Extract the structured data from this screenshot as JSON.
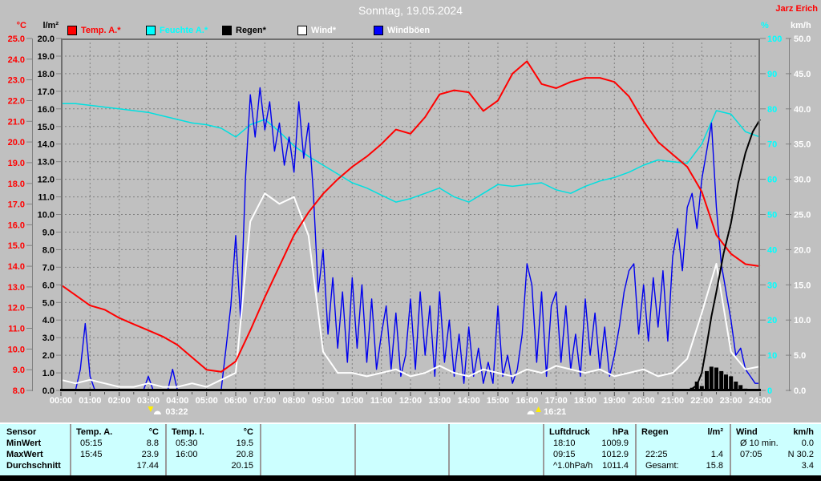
{
  "window": {
    "title": "Sonntag, 19.05.2024",
    "watermark": "Jarz Erich"
  },
  "units": {
    "temp": "°C",
    "rain": "l/m²",
    "humidity": "%",
    "wind": "km/h"
  },
  "legend": {
    "items": [
      {
        "label": "Temp. A.*",
        "swatch_color": "#ff0000",
        "text_color": "#ff0000"
      },
      {
        "label": "Feuchte A.*",
        "swatch_color": "#00ffff",
        "text_color": "#00ffff"
      },
      {
        "label": "Regen*",
        "swatch_color": "#000000",
        "text_color": "#000000"
      },
      {
        "label": "Wind*",
        "swatch_color": "#ffffff",
        "text_color": "#ffffff"
      },
      {
        "label": "Windböen",
        "swatch_color": "#0000ff",
        "text_color": "#ffffff"
      }
    ]
  },
  "chart_data": {
    "type": "line",
    "title": "Sonntag, 19.05.2024",
    "grid": true,
    "x_axis": {
      "unit": "hours",
      "min": 0,
      "max": 24,
      "tick_labels": [
        "00:00",
        "01:00",
        "02:00",
        "03:00",
        "04:00",
        "05:00",
        "06:00",
        "07:00",
        "08:00",
        "09:00",
        "10:00",
        "11:00",
        "12:00",
        "13:00",
        "14:00",
        "15:00",
        "16:00",
        "17:00",
        "18:00",
        "19:00",
        "20:00",
        "21:00",
        "22:00",
        "23:00",
        "24:00"
      ]
    },
    "y_axes": {
      "temp": {
        "unit": "°C",
        "color": "#ff0000",
        "min": 8,
        "max": 25,
        "tick_labels": [
          "25.0",
          "24.0",
          "23.0",
          "22.0",
          "21.0",
          "20.0",
          "19.0",
          "18.0",
          "17.0",
          "16.0",
          "15.0",
          "14.0",
          "13.0",
          "12.0",
          "11.0",
          "10.0",
          "9.0",
          "8.0"
        ]
      },
      "rain": {
        "unit": "l/m²",
        "color": "#000000",
        "min": 0,
        "max": 20,
        "tick_labels": [
          "20.0",
          "19.0",
          "18.0",
          "17.0",
          "16.0",
          "15.0",
          "14.0",
          "13.0",
          "12.0",
          "11.0",
          "10.0",
          "9.0",
          "8.0",
          "7.0",
          "6.0",
          "5.0",
          "4.0",
          "3.0",
          "2.0",
          "1.0",
          "0.0"
        ]
      },
      "humidity": {
        "unit": "%",
        "color": "#00ffff",
        "min": 0,
        "max": 100,
        "tick_labels": [
          "100",
          "90",
          "80",
          "70",
          "60",
          "50",
          "40",
          "30",
          "20",
          "10",
          "0"
        ]
      },
      "wind": {
        "unit": "km/h",
        "color": "#ffffff",
        "min": 0,
        "max": 50,
        "tick_labels": [
          "50.0",
          "45.0",
          "40.0",
          "35.0",
          "30.0",
          "25.0",
          "20.0",
          "15.0",
          "10.0",
          "5.0",
          "0.0"
        ]
      }
    },
    "series": [
      {
        "name": "Feuchte A.",
        "axis": "humidity",
        "unit": "%",
        "color": "#00e0e0",
        "width": 1.5,
        "render": "line",
        "x_start": 0,
        "x_step": 0.5,
        "values": [
          81.5,
          81.5,
          81,
          80.5,
          80,
          79.5,
          79,
          78,
          77,
          76,
          75.5,
          74.5,
          72,
          75.5,
          77,
          73.5,
          69.5,
          66.5,
          64,
          61.5,
          59,
          57.5,
          55.5,
          53.5,
          54.5,
          56,
          57.5,
          55,
          53.5,
          56,
          58.5,
          58,
          58.5,
          59,
          57,
          56,
          58,
          59.5,
          60.5,
          62,
          64,
          65.5,
          65,
          64.5,
          70,
          79.5,
          78.5,
          73.5,
          72
        ]
      },
      {
        "name": "Windböen",
        "axis": "wind",
        "unit": "km/h",
        "color": "#0000ee",
        "width": 1.4,
        "render": "line",
        "x_start": 0,
        "x_step": 0.1666667,
        "values": [
          0,
          0,
          0,
          0,
          3,
          9.5,
          2,
          0,
          0,
          0,
          0,
          0,
          0,
          0,
          0,
          0,
          0,
          0,
          2,
          0,
          0,
          0,
          0,
          3,
          0,
          0,
          0,
          0,
          0,
          0,
          0,
          0,
          0,
          0,
          6,
          12,
          22,
          10,
          30,
          42,
          36,
          43,
          37,
          41,
          34,
          38,
          32,
          36,
          31,
          41,
          33,
          38,
          28,
          14,
          20,
          8,
          16,
          6,
          14,
          4,
          16,
          6,
          15,
          4,
          13,
          3,
          8,
          12,
          3,
          11,
          2,
          5,
          13,
          3,
          14,
          5,
          12,
          2,
          14,
          4,
          10,
          2,
          8,
          1,
          9,
          2,
          6,
          1,
          4,
          1,
          12,
          2,
          5,
          1,
          3,
          8,
          18,
          15,
          4,
          14,
          2,
          12,
          14,
          4,
          12,
          3,
          8,
          2,
          13,
          5,
          11,
          3,
          9,
          2,
          5,
          9,
          14,
          17,
          18,
          8,
          15,
          7,
          16,
          9,
          17,
          7,
          19,
          23,
          17,
          26,
          28,
          23,
          30,
          34,
          38,
          26,
          18,
          14,
          10,
          5,
          6,
          3,
          2,
          1,
          1
        ]
      },
      {
        "name": "Wind",
        "axis": "wind",
        "unit": "km/h",
        "color": "#ffffff",
        "width": 2,
        "render": "line",
        "x_start": 0,
        "x_step": 0.5,
        "values": [
          1.5,
          1,
          1.5,
          1,
          0.5,
          0.5,
          1,
          0.5,
          0.5,
          1,
          0.5,
          1.5,
          2.5,
          24,
          28,
          26.5,
          27.5,
          22,
          5.5,
          2.5,
          2.5,
          2,
          2.5,
          3,
          2,
          2.5,
          3.5,
          2.5,
          2,
          3,
          2.5,
          2,
          3,
          2.5,
          3.5,
          3,
          2.5,
          3,
          2,
          2.5,
          3,
          2,
          2.5,
          4.5,
          11,
          18,
          5.5,
          3,
          3.4
        ]
      },
      {
        "name": "Temp. A.",
        "axis": "temp",
        "unit": "°C",
        "color": "#ff0000",
        "width": 2,
        "render": "line",
        "x_start": 0,
        "x_step": 0.5,
        "values": [
          13.1,
          12.6,
          12.1,
          11.9,
          11.5,
          11.2,
          10.9,
          10.6,
          10.2,
          9.6,
          9,
          8.9,
          9.4,
          10.9,
          12.5,
          14,
          15.5,
          16.6,
          17.5,
          18.2,
          18.8,
          19.3,
          19.9,
          20.6,
          20.4,
          21.2,
          22.3,
          22.5,
          22.4,
          21.5,
          22,
          23.3,
          23.9,
          22.8,
          22.6,
          22.9,
          23.1,
          23.1,
          22.9,
          22.2,
          21,
          20,
          19.4,
          18.8,
          17.6,
          15.5,
          14.6,
          14.1,
          14
        ]
      },
      {
        "name": "Regen",
        "axis": "rain",
        "unit": "l/m²",
        "color": "#000000",
        "render": "bars",
        "x": [
          21.67,
          21.83,
          22.0,
          22.17,
          22.33,
          22.5,
          22.67,
          22.83,
          23.0,
          23.17,
          23.33,
          23.5
        ],
        "values": [
          0.15,
          0.5,
          0.25,
          1.1,
          1.35,
          1.3,
          1.1,
          0.9,
          0.8,
          0.5,
          0.3,
          0.1
        ]
      },
      {
        "name": "Regen",
        "axis": "rain",
        "unit": "l/m²",
        "color": "#000000",
        "width": 2,
        "render": "line",
        "x": [
          0,
          21.5,
          21.67,
          21.83,
          22.0,
          22.17,
          22.33,
          22.5,
          22.75,
          23.0,
          23.25,
          23.5,
          23.75,
          24
        ],
        "values": [
          0,
          0,
          0.1,
          0.3,
          1,
          2.6,
          4.2,
          5.6,
          7.8,
          9.5,
          11.8,
          13.5,
          14.7,
          15.4
        ]
      }
    ],
    "markers": [
      {
        "time": "03:22",
        "hour": 3.37,
        "direction": "down"
      },
      {
        "time": "16:21",
        "hour": 16.35,
        "direction": "up"
      }
    ]
  },
  "table": {
    "row_headers": [
      "Sensor",
      "MinWert",
      "MaxWert",
      "Durchschnitt"
    ],
    "columns": [
      {
        "name": "Temp. A.",
        "unit": "°C",
        "rows": [
          [
            "05:15",
            "8.8"
          ],
          [
            "15:45",
            "23.9"
          ],
          [
            "",
            "17.44"
          ]
        ]
      },
      {
        "name": "Temp. I.",
        "unit": "°C",
        "rows": [
          [
            "05:30",
            "19.5"
          ],
          [
            "16:00",
            "20.8"
          ],
          [
            "",
            "20.15"
          ]
        ]
      },
      {
        "name": "",
        "unit": "",
        "rows": [
          [
            "",
            ""
          ],
          [
            "",
            ""
          ],
          [
            "",
            ""
          ]
        ]
      },
      {
        "name": "",
        "unit": "",
        "rows": [
          [
            "",
            ""
          ],
          [
            "",
            ""
          ],
          [
            "",
            ""
          ]
        ]
      },
      {
        "name": "",
        "unit": "",
        "rows": [
          [
            "",
            ""
          ],
          [
            "",
            ""
          ],
          [
            "",
            ""
          ]
        ]
      },
      {
        "name": "Luftdruck",
        "unit": "hPa",
        "rows": [
          [
            "18:10",
            "1009.9"
          ],
          [
            "09:15",
            "1012.9"
          ],
          [
            "^1.0hPa/h",
            "1011.4"
          ]
        ]
      },
      {
        "name": "Regen",
        "unit": "l/m²",
        "rows": [
          [
            "",
            ""
          ],
          [
            "22:25",
            "1.4"
          ],
          [
            "Gesamt:",
            "15.8"
          ]
        ]
      },
      {
        "name": "Wind",
        "unit": "km/h",
        "rows": [
          [
            "Ø 10 min.",
            "0.0"
          ],
          [
            "07:05",
            "N 30.2"
          ],
          [
            "",
            "3.4"
          ]
        ]
      }
    ]
  },
  "colors": {
    "background": "#c0c0c0",
    "grid": "#808080",
    "axis_black": "#000000",
    "table_background": "#ccffff",
    "bottom_bar": "#000000",
    "title_text": "#ffffff",
    "watermark_text": "#ff0000"
  }
}
